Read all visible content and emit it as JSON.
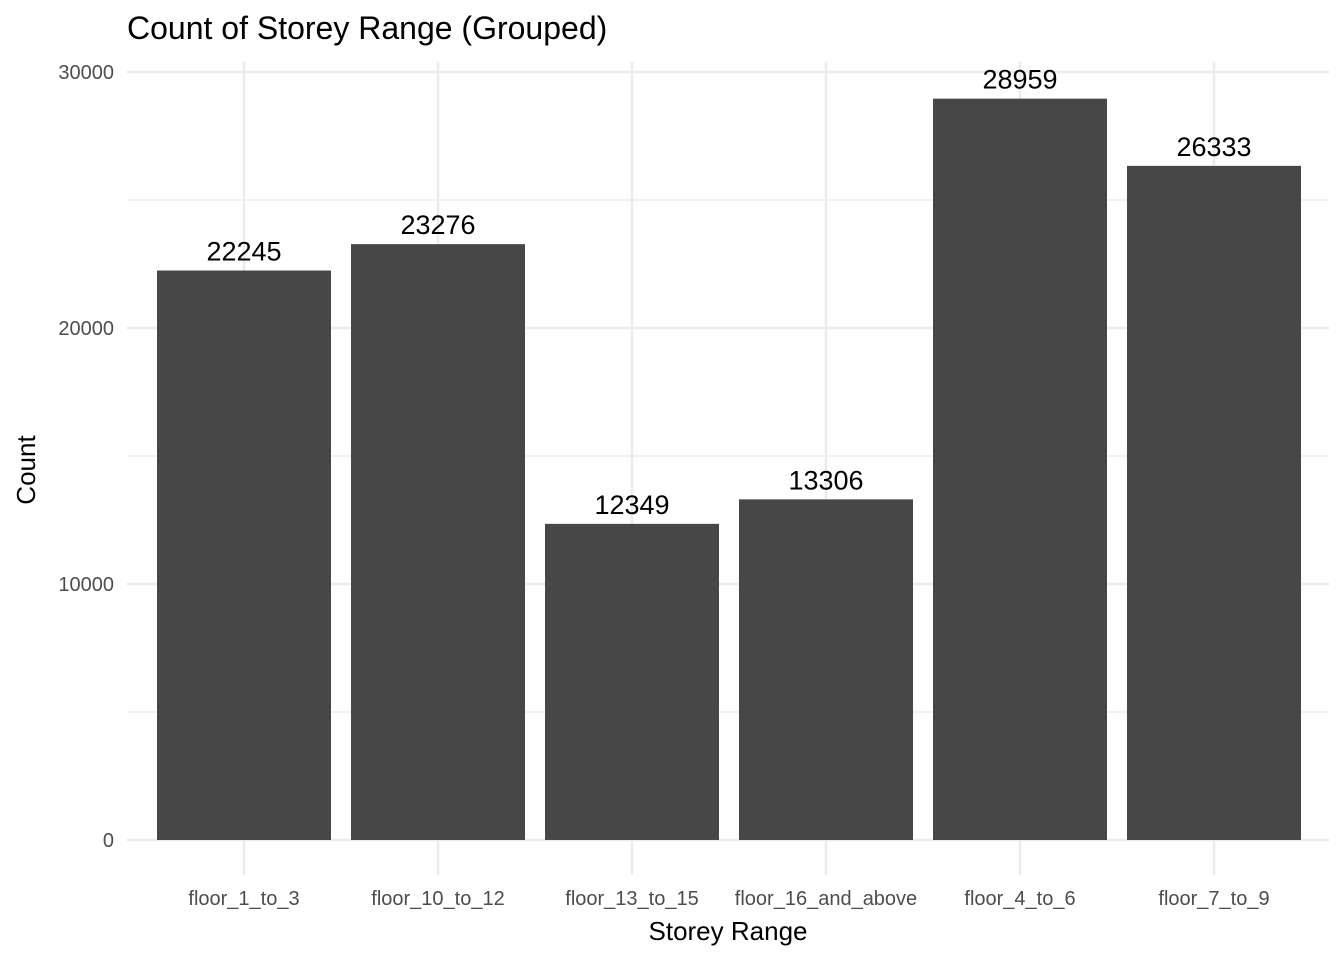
{
  "chart_data": {
    "type": "bar",
    "title": "Count of Storey Range (Grouped)",
    "xlabel": "Storey Range",
    "ylabel": "Count",
    "categories": [
      "floor_1_to_3",
      "floor_10_to_12",
      "floor_13_to_15",
      "floor_16_and_above",
      "floor_4_to_6",
      "floor_7_to_9"
    ],
    "values": [
      22245,
      23276,
      12349,
      13306,
      28959,
      26333
    ],
    "ylim": [
      0,
      30000
    ],
    "yticks": [
      0,
      10000,
      20000,
      30000
    ],
    "ytick_labels": [
      "0",
      "10000",
      "20000",
      "30000"
    ],
    "grid": true,
    "bar_color": "#474747",
    "grid_color": "#ebebeb",
    "data_labels": true,
    "legend": "none"
  }
}
